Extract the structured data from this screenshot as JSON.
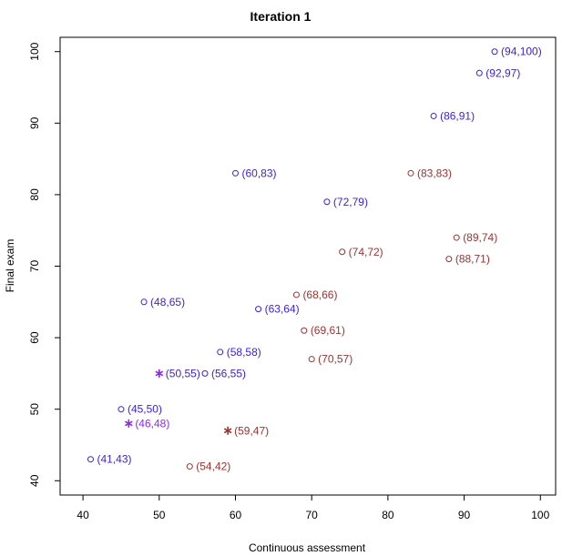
{
  "chart_data": {
    "type": "scatter",
    "title": "Iteration 1",
    "xlabel": "Continuous assessment",
    "ylabel": "Final exam",
    "xlim": [
      37,
      102
    ],
    "ylim": [
      38,
      102
    ],
    "xticks": [
      40,
      50,
      60,
      70,
      80,
      90,
      100
    ],
    "yticks": [
      40,
      50,
      60,
      70,
      80,
      90,
      100
    ],
    "grid": false,
    "colors": {
      "cluster_1": "#3b1fd6",
      "cluster_2": "#9b3232",
      "centroid_1": "#8a2be2",
      "centroid_2": "#9b3232"
    },
    "series": [
      {
        "marker": "circle",
        "color_key": "cluster_1",
        "points": [
          {
            "x": 94,
            "y": 100,
            "label": "(94,100)"
          },
          {
            "x": 92,
            "y": 97,
            "label": "(92,97)"
          },
          {
            "x": 86,
            "y": 91,
            "label": "(86,91)"
          },
          {
            "x": 60,
            "y": 83,
            "label": "(60,83)"
          },
          {
            "x": 72,
            "y": 79,
            "label": "(72,79)"
          },
          {
            "x": 48,
            "y": 65,
            "label": "(48,65)"
          },
          {
            "x": 63,
            "y": 64,
            "label": "(63,64)"
          },
          {
            "x": 58,
            "y": 58,
            "label": "(58,58)"
          },
          {
            "x": 56,
            "y": 55,
            "label": "(56,55)"
          },
          {
            "x": 45,
            "y": 50,
            "label": "(45,50)"
          },
          {
            "x": 41,
            "y": 43,
            "label": "(41,43)"
          }
        ]
      },
      {
        "marker": "circle",
        "color_key": "cluster_2",
        "points": [
          {
            "x": 83,
            "y": 83,
            "label": "(83,83)"
          },
          {
            "x": 89,
            "y": 74,
            "label": "(89,74)"
          },
          {
            "x": 74,
            "y": 72,
            "label": "(74,72)"
          },
          {
            "x": 88,
            "y": 71,
            "label": "(88,71)"
          },
          {
            "x": 68,
            "y": 66,
            "label": "(68,66)"
          },
          {
            "x": 69,
            "y": 61,
            "label": "(69,61)"
          },
          {
            "x": 70,
            "y": 57,
            "label": "(70,57)"
          },
          {
            "x": 54,
            "y": 42,
            "label": "(54,42)"
          }
        ]
      },
      {
        "marker": "asterisk",
        "color_key": "centroid_1",
        "points": [
          {
            "x": 50,
            "y": 55,
            "label": "(50,55)",
            "label_color_key": "cluster_1"
          },
          {
            "x": 46,
            "y": 48,
            "label": "(46,48)",
            "label_color_key": "centroid_1"
          }
        ]
      },
      {
        "marker": "asterisk",
        "color_key": "centroid_2",
        "points": [
          {
            "x": 59,
            "y": 47,
            "label": "(59,47)",
            "label_color_key": "centroid_2"
          }
        ]
      }
    ]
  }
}
